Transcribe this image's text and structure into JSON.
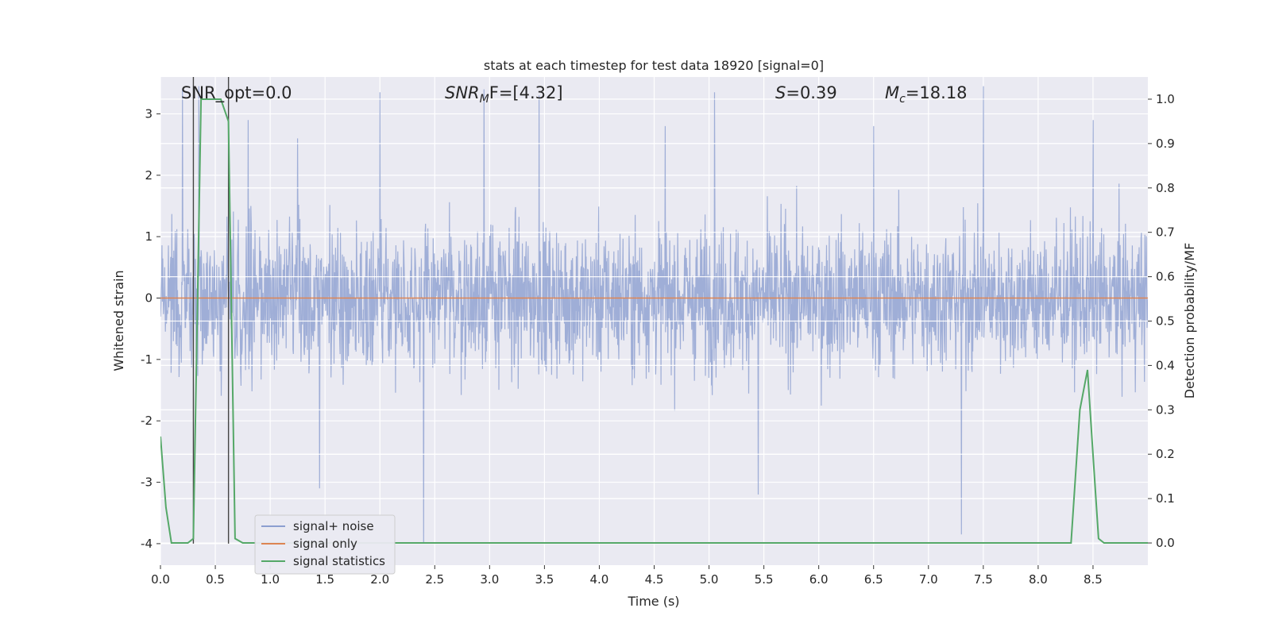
{
  "chart_data": {
    "type": "line",
    "title": "stats at each timestep for test data 18920 [signal=0]",
    "xlabel": "Time (s)",
    "ylabel_left": "Whitened strain",
    "ylabel_right": "Detection probability/MF",
    "xlim": [
      0.0,
      9.0
    ],
    "ylim_left": [
      -4.35,
      3.6
    ],
    "ylim_right": [
      -0.05,
      1.05
    ],
    "xticks": [
      "0.0",
      "0.5",
      "1.0",
      "1.5",
      "2.0",
      "2.5",
      "3.0",
      "3.5",
      "4.0",
      "4.5",
      "5.0",
      "5.5",
      "6.0",
      "6.5",
      "7.0",
      "7.5",
      "8.0",
      "8.5"
    ],
    "yticks_left": [
      "3",
      "2",
      "1",
      "0",
      "-1",
      "-2",
      "-3",
      "-4"
    ],
    "yticks_right": [
      "1.0",
      "0.9",
      "0.8",
      "0.7",
      "0.6",
      "0.5",
      "0.4",
      "0.3",
      "0.2",
      "0.1",
      "0.0"
    ],
    "grid": true,
    "annotations": {
      "snr_opt": "SNR_opt=0.0",
      "snr_mf_base": "SNR",
      "snr_mf_sub": "M",
      "snr_mf_rest": "F=[4.32]",
      "s_name": "S",
      "s_value": "=0.39",
      "mc_name": "M",
      "mc_sub": "c",
      "mc_value": "=18.18"
    },
    "vlines_x": [
      0.3,
      0.62
    ],
    "series": [
      {
        "name": "signal+ noise",
        "axis": "left",
        "color": "#8c9fd0",
        "description": "dense whitened noise, roughly ±1.5 with spikes up to ±3.5",
        "peaks": [
          [
            0.2,
            3.4
          ],
          [
            0.35,
            3.45
          ],
          [
            0.8,
            2.9
          ],
          [
            1.25,
            2.6
          ],
          [
            1.45,
            -3.1
          ],
          [
            2.0,
            3.35
          ],
          [
            2.4,
            -4.0
          ],
          [
            2.95,
            3.4
          ],
          [
            3.45,
            3.3
          ],
          [
            4.6,
            2.8
          ],
          [
            5.05,
            3.35
          ],
          [
            5.45,
            -3.2
          ],
          [
            6.5,
            2.8
          ],
          [
            7.3,
            -3.85
          ],
          [
            7.5,
            3.45
          ],
          [
            8.5,
            2.9
          ]
        ]
      },
      {
        "name": "signal only",
        "axis": "left",
        "color": "#dd8452",
        "x": [
          0.0,
          9.0
        ],
        "values": [
          0.0,
          0.0
        ]
      },
      {
        "name": "signal statistics",
        "axis": "right",
        "color": "#55a868",
        "x": [
          0.0,
          0.05,
          0.1,
          0.15,
          0.2,
          0.25,
          0.3,
          0.37,
          0.45,
          0.5,
          0.55,
          0.62,
          0.68,
          0.75,
          1.0,
          2.0,
          3.0,
          4.0,
          5.0,
          6.0,
          6.6,
          6.7,
          7.0,
          7.5,
          8.0,
          8.3,
          8.38,
          8.45,
          8.5,
          8.55,
          8.6,
          8.7,
          9.0
        ],
        "values": [
          0.24,
          0.08,
          0.0,
          0.0,
          0.0,
          0.0,
          0.01,
          1.0,
          1.0,
          1.0,
          1.0,
          0.95,
          0.01,
          0.0,
          0.0,
          0.0,
          0.0,
          0.0,
          0.0,
          0.0,
          0.0,
          0.0,
          0.0,
          0.0,
          0.0,
          0.0,
          0.3,
          0.39,
          0.2,
          0.01,
          0.0,
          0.0,
          0.0
        ]
      }
    ],
    "legend": {
      "location": "lower-left",
      "entries": [
        "signal+ noise",
        "signal only",
        "signal statistics"
      ]
    }
  }
}
